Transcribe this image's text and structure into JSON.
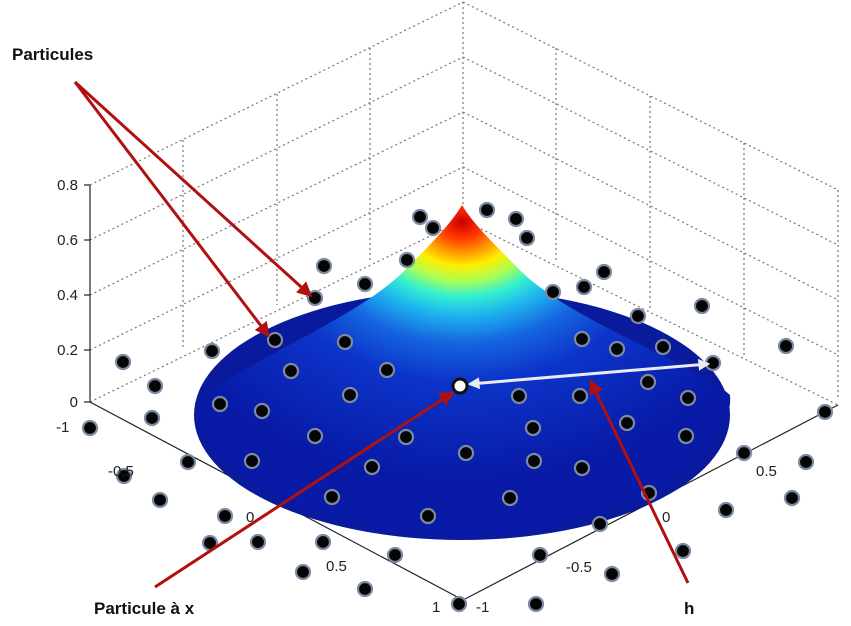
{
  "annotations": {
    "particles_label": "Particules",
    "particle_x_label": "Particule à x",
    "h_label": "h"
  },
  "z_axis": {
    "ticks": [
      "0",
      "0.2",
      "0.4",
      "0.6",
      "0.8"
    ]
  },
  "left_axis": {
    "ticks": [
      "-1",
      "-0.5",
      "0",
      "0.5",
      "1"
    ]
  },
  "right_axis": {
    "ticks": [
      "-1",
      "-0.5",
      "0",
      "0.5"
    ]
  },
  "colors": {
    "surface_peak": "#cc0000",
    "surface_mid": "#22e0e0",
    "surface_base": "#0a1fb0",
    "arrow_red": "#b01010",
    "arrow_h": "#e8ecf2",
    "particle_fill": "#050505",
    "particle_outline": "#7c8aa3"
  }
}
